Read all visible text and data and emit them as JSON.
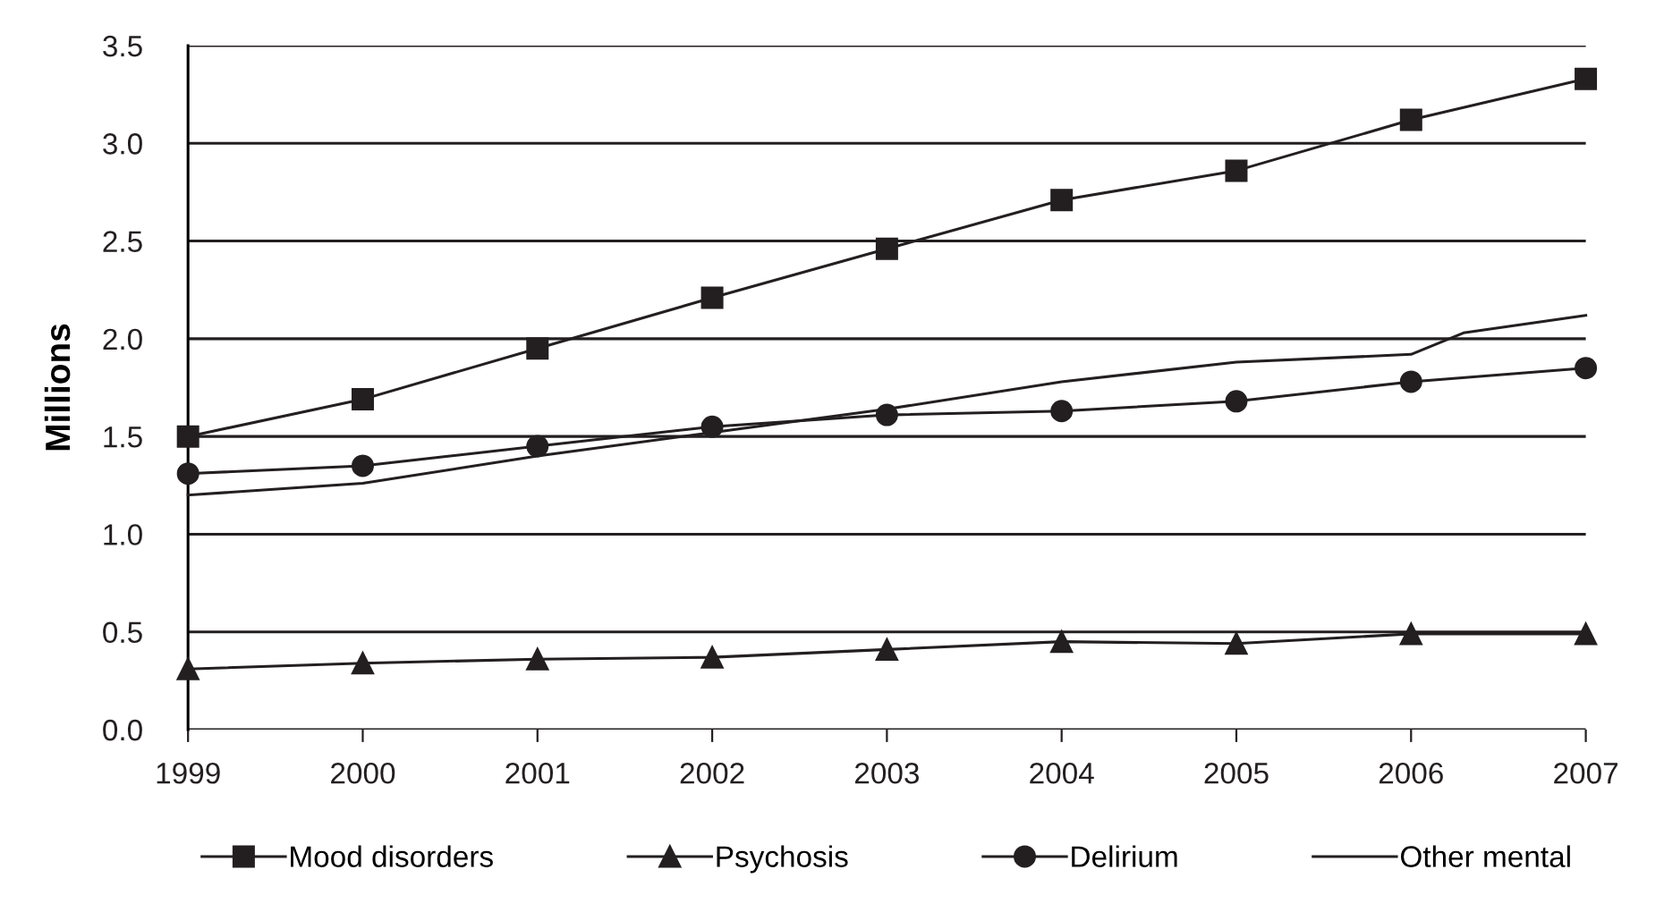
{
  "chart_data": {
    "type": "line",
    "ylabel": "Millions",
    "x": [
      1999,
      2000,
      2001,
      2002,
      2003,
      2004,
      2005,
      2006,
      2007
    ],
    "xlim": [
      1999,
      2007
    ],
    "xticks": [
      1999,
      2000,
      2001,
      2002,
      2003,
      2004,
      2005,
      2006,
      2007
    ],
    "ylim": [
      0,
      3.5
    ],
    "yticks": [
      {
        "value": 0,
        "label": "0.0"
      },
      0.5,
      {
        "value": 1,
        "label": "1.0"
      },
      1.5,
      {
        "value": 2,
        "label": "2.0"
      },
      2.5,
      {
        "value": 3,
        "label": "3.0"
      },
      3.5
    ],
    "grid": "y",
    "legend": "bottom",
    "series": [
      {
        "name": "Mood disorders",
        "color": "#231f20",
        "marker": "square",
        "values": [
          1.5,
          1.69,
          1.95,
          2.21,
          2.46,
          2.71,
          2.86,
          3.12,
          3.33
        ]
      },
      {
        "name": "Psychosis",
        "color": "#231f20",
        "marker": "triangle",
        "values": [
          0.31,
          0.34,
          0.36,
          0.37,
          0.41,
          0.45,
          0.44,
          0.49,
          0.49
        ]
      },
      {
        "name": "Delirium",
        "color": "#231f20",
        "marker": "circle",
        "values": [
          1.31,
          1.35,
          1.45,
          1.55,
          1.61,
          1.63,
          1.68,
          1.78,
          1.85
        ]
      },
      {
        "name": "Other mental",
        "color": "#231f20",
        "marker": "none",
        "x": [
          1999,
          2000,
          2001,
          2002,
          2003,
          2004,
          2005,
          2006,
          2006.3,
          2007
        ],
        "values": [
          1.2,
          1.26,
          1.4,
          1.52,
          1.64,
          1.78,
          1.88,
          1.92,
          2.03,
          2.12
        ]
      }
    ]
  }
}
